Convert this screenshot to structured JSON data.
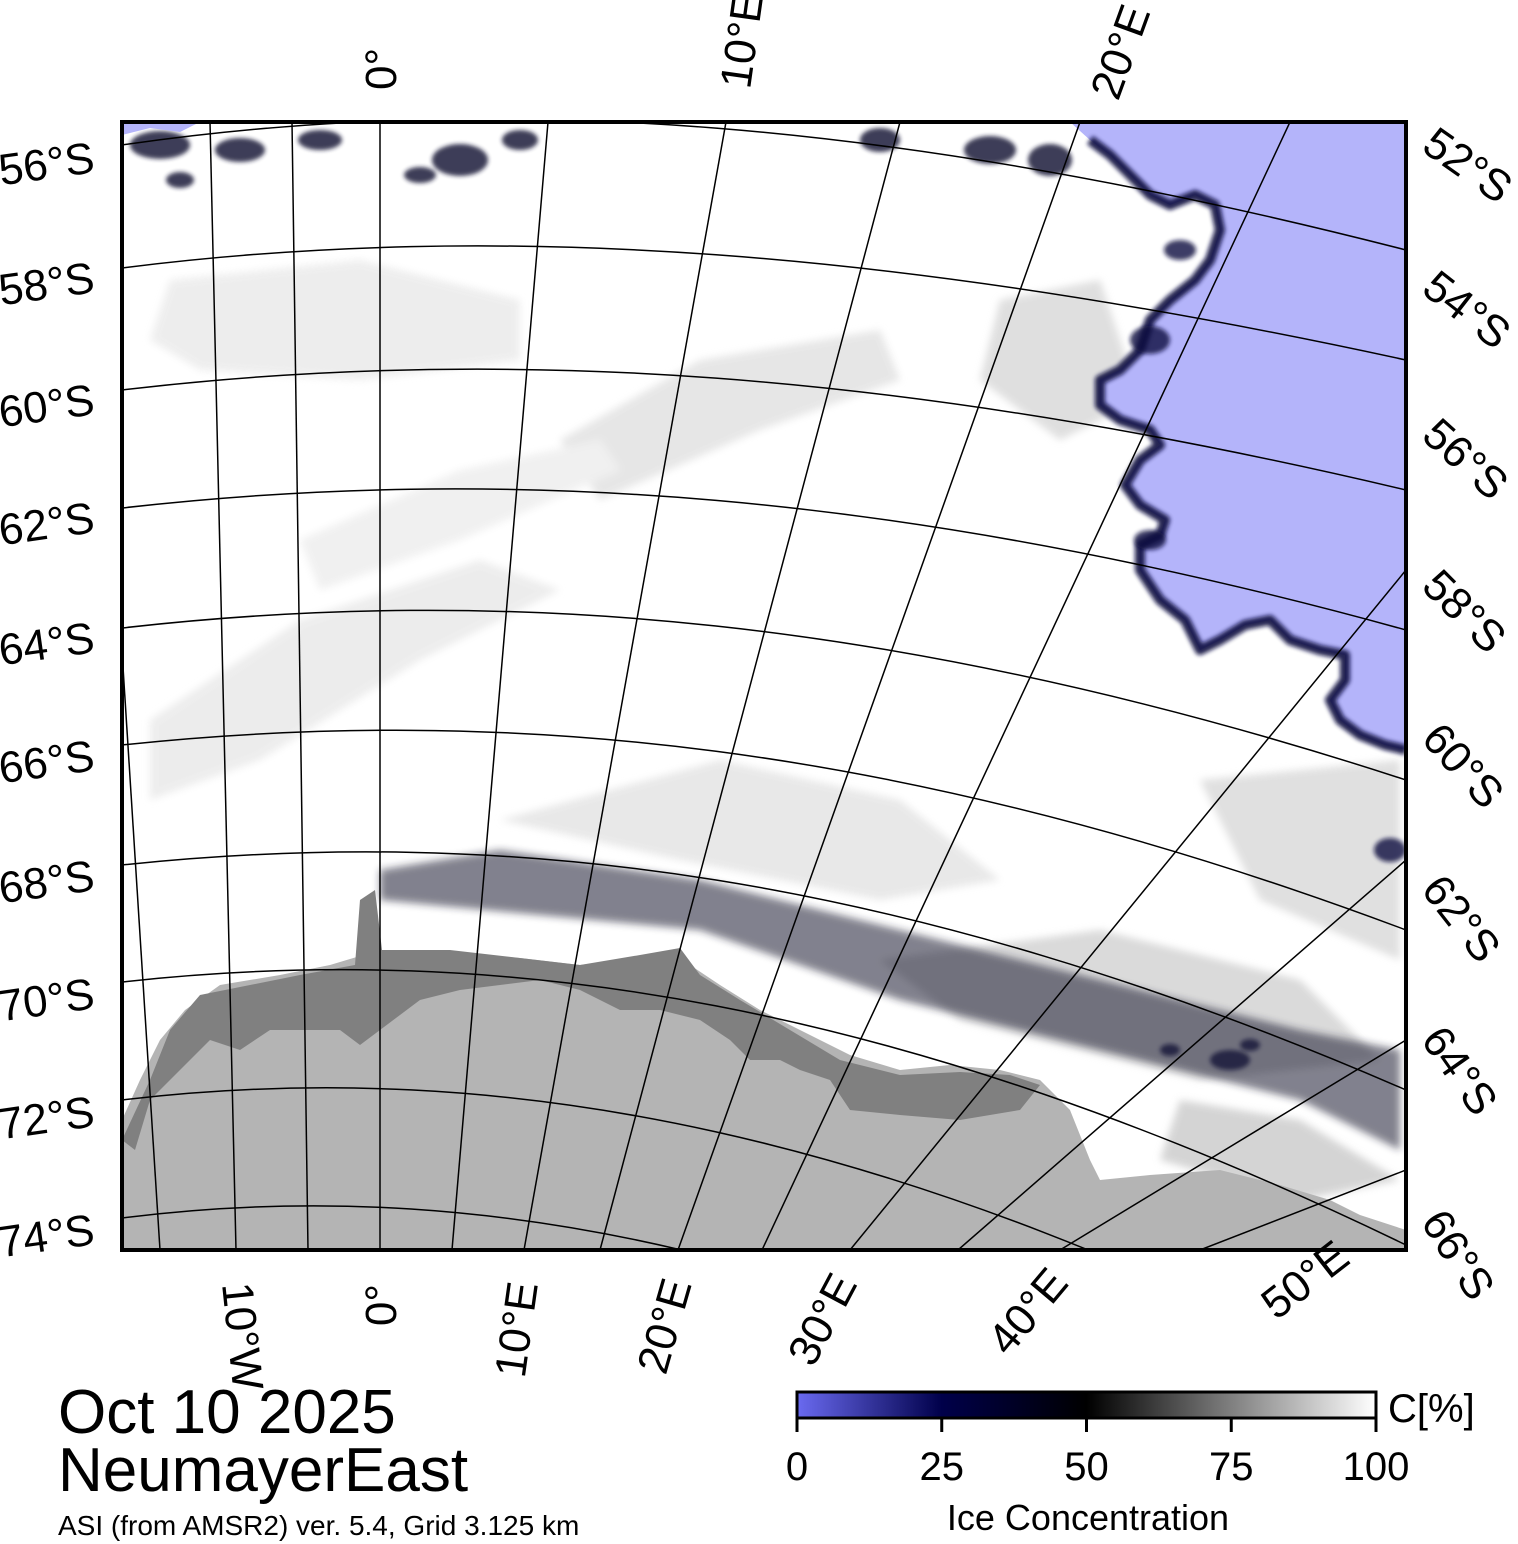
{
  "titles": {
    "date": "Oct 10 2025",
    "region": "NeumayerEast",
    "source": "ASI (from AMSR2) ver. 5.4,  Grid 3.125 km"
  },
  "map": {
    "projection": "polar stereographic (south)",
    "left_labels": [
      "56°S",
      "58°S",
      "60°S",
      "62°S",
      "64°S",
      "66°S",
      "68°S",
      "70°S",
      "72°S",
      "74°S"
    ],
    "right_labels": [
      "52°S",
      "54°S",
      "56°S",
      "58°S",
      "60°S",
      "62°S",
      "64°S",
      "66°S"
    ],
    "top_labels": [
      "0°",
      "10°E",
      "20°E"
    ],
    "bottom_labels": [
      "10°W",
      "0°",
      "10°E",
      "20°E",
      "30°E",
      "40°E",
      "50°E"
    ],
    "colors": {
      "open_water": "#b4b4fa",
      "ice_full": "#ffffff",
      "land": "#b4b4b4",
      "ice_shelf": "#808080",
      "graticule": "#000000"
    }
  },
  "colorbar": {
    "label": "Ice Concentration",
    "unit": "C[%]",
    "ticks": [
      "0",
      "25",
      "50",
      "75",
      "100"
    ],
    "range": [
      0,
      100
    ],
    "stops": [
      "#6a6af0",
      "#00004a",
      "#000000",
      "#ffffff"
    ]
  }
}
